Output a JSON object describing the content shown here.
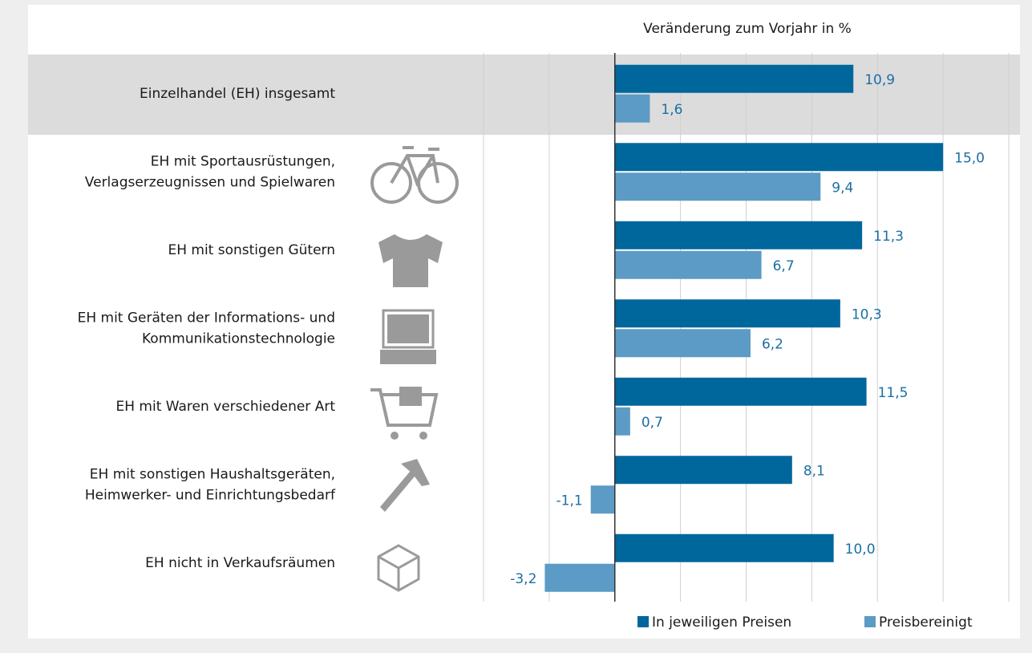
{
  "chart_data": {
    "type": "bar",
    "orientation": "horizontal",
    "title": "Veränderung zum Vorjahr in %",
    "categories": [
      [
        "Einzelhandel (EH) insgesamt"
      ],
      [
        "EH mit Sportausrüstungen,",
        "Verlagserzeugnissen und Spielwaren"
      ],
      [
        "EH mit sonstigen Gütern"
      ],
      [
        "EH mit Geräten der Informations- und",
        "Kommunikationstechnologie"
      ],
      [
        "EH mit Waren verschiedener Art"
      ],
      [
        "EH mit sonstigen Haushaltsgeräten,",
        "Heimwerker- und Einrichtungsbedarf"
      ],
      [
        "EH nicht in Verkaufsräumen"
      ]
    ],
    "series": [
      {
        "name": "In jeweiligen Preisen",
        "color": "#00679d",
        "values": [
          10.9,
          15.0,
          11.3,
          10.3,
          11.5,
          8.1,
          10.0
        ],
        "value_labels": [
          "10,9",
          "15,0",
          "11,3",
          "10,3",
          "11,5",
          "8,1",
          "10,0"
        ]
      },
      {
        "name": "Preisbereinigt",
        "color": "#5b9bc5",
        "values": [
          1.6,
          9.4,
          6.7,
          6.2,
          0.7,
          -1.1,
          -3.2
        ],
        "value_labels": [
          "1,6",
          "9,4",
          "6,7",
          "6,2",
          "0,7",
          "-1,1",
          "-3,2"
        ]
      }
    ],
    "xlim": [
      -6,
      18
    ],
    "xticks": [
      -6,
      -3,
      0,
      3,
      6,
      9,
      12,
      15,
      18
    ],
    "grid": true,
    "legend": "bottom-right"
  }
}
